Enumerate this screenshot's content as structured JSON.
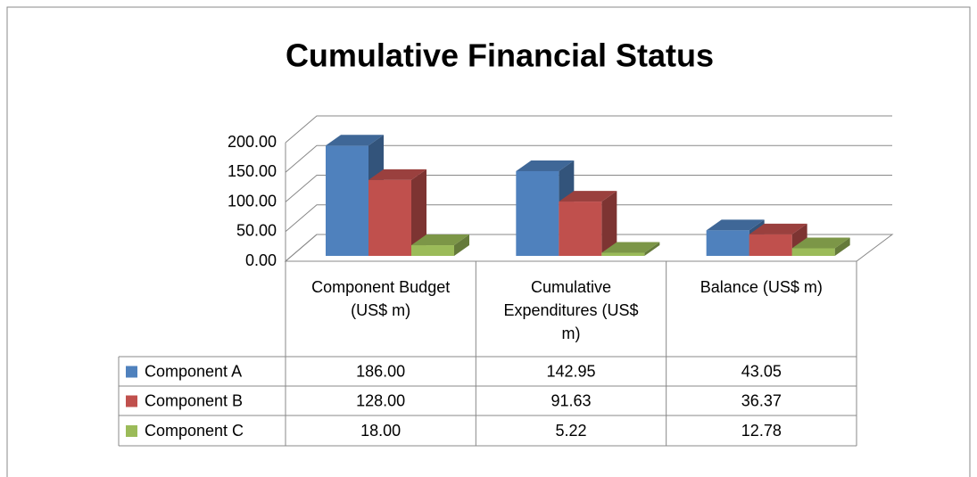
{
  "chart_data": {
    "type": "bar3d",
    "title": "Cumulative Financial Status",
    "categories": [
      "Component Budget (US$ m)",
      "Cumulative Expenditures (US$ m)",
      "Balance (US$ m)"
    ],
    "series": [
      {
        "name": "Component A",
        "color": "#4f81bd",
        "values": [
          186,
          142.95,
          43.05
        ],
        "value_labels": [
          "186.00",
          "142.95",
          "43.05"
        ]
      },
      {
        "name": "Component B",
        "color": "#c0504d",
        "values": [
          128,
          91.63,
          36.37
        ],
        "value_labels": [
          "128.00",
          "91.63",
          "36.37"
        ]
      },
      {
        "name": "Component C",
        "color": "#9bbb59",
        "values": [
          18,
          5.22,
          12.78
        ],
        "value_labels": [
          "18.00",
          "5.22",
          "12.78"
        ]
      }
    ],
    "ylim": [
      0,
      200
    ],
    "yticks": [
      {
        "value": 0,
        "label": "0.00"
      },
      {
        "value": 50,
        "label": "50.00"
      },
      {
        "value": 100,
        "label": "100.00"
      },
      {
        "value": 150,
        "label": "150.00"
      },
      {
        "value": 200,
        "label": "200.00"
      }
    ],
    "grid": true
  }
}
